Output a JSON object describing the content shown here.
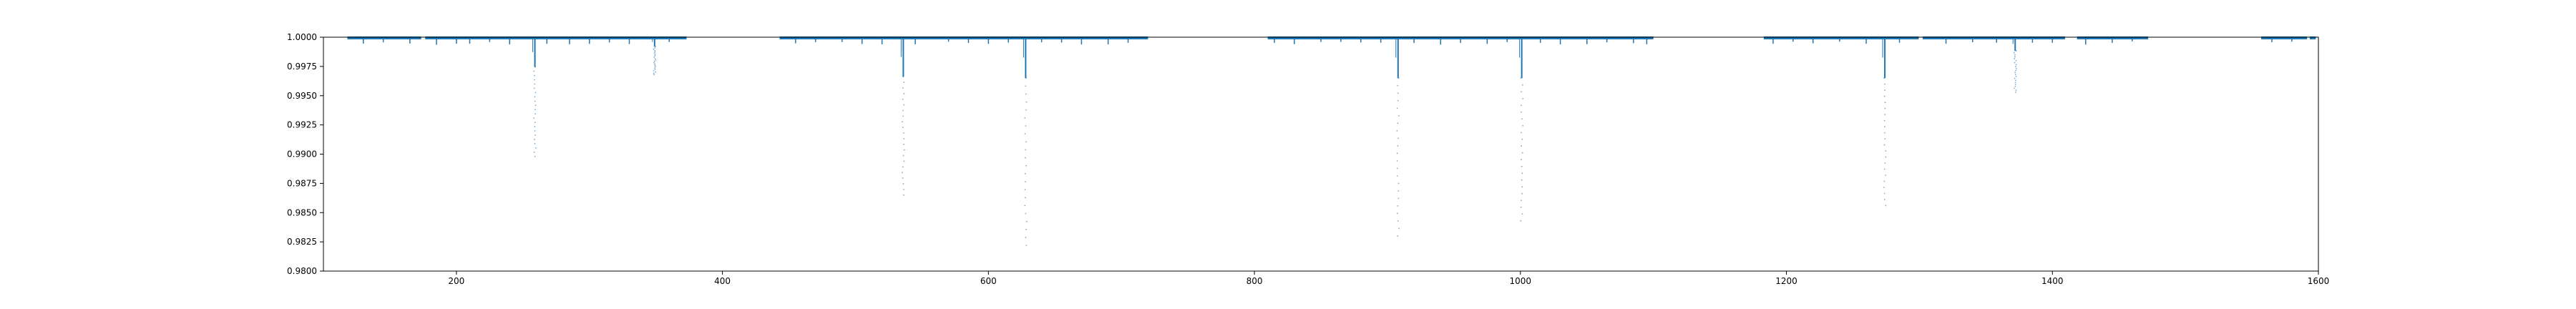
{
  "chart_data": {
    "type": "scatter",
    "title": "",
    "xlabel": "",
    "ylabel": "",
    "xlim": [
      100,
      1600
    ],
    "ylim": [
      0.98,
      1.0
    ],
    "grid": false,
    "x_ticks": [
      200,
      400,
      600,
      800,
      1000,
      1200,
      1400,
      1600
    ],
    "x_tick_labels": [
      "200",
      "400",
      "600",
      "800",
      "1000",
      "1200",
      "1400",
      "1600"
    ],
    "y_ticks": [
      0.98,
      0.9825,
      0.985,
      0.9875,
      0.99,
      0.9925,
      0.995,
      0.9975,
      1.0
    ],
    "y_tick_labels": [
      "0.9800",
      "0.9825",
      "0.9850",
      "0.9875",
      "0.9900",
      "0.9925",
      "0.9950",
      "0.9975",
      "1.0000"
    ],
    "colors": {
      "series": "#1f77b4"
    },
    "segments": [
      [
        118,
        373
      ],
      [
        443,
        720
      ],
      [
        810,
        1100
      ],
      [
        1183,
        1472
      ],
      [
        1557,
        1598
      ]
    ],
    "gaps": [
      [
        174,
        176
      ],
      [
        392,
        394
      ],
      [
        1300,
        1302
      ],
      [
        1410,
        1418
      ],
      [
        1592,
        1593
      ]
    ],
    "baseline": 0.99995,
    "scatter": 0.0001,
    "dips": [
      {
        "t": 259,
        "min": 0.9898
      },
      {
        "t": 349,
        "min": 0.9968
      },
      {
        "t": 536,
        "min": 0.9865
      },
      {
        "t": 628,
        "min": 0.9822
      },
      {
        "t": 908,
        "min": 0.983
      },
      {
        "t": 1001,
        "min": 0.9843
      },
      {
        "t": 1274,
        "min": 0.9856
      },
      {
        "t": 1372,
        "min": 0.9953
      }
    ],
    "small_dips": [
      130,
      145,
      165,
      185,
      200,
      210,
      225,
      240,
      268,
      285,
      300,
      315,
      330,
      360,
      455,
      470,
      490,
      505,
      520,
      545,
      570,
      585,
      600,
      615,
      640,
      655,
      670,
      690,
      705,
      815,
      830,
      850,
      865,
      880,
      895,
      920,
      940,
      955,
      975,
      990,
      1015,
      1030,
      1050,
      1065,
      1085,
      1095,
      1190,
      1205,
      1220,
      1240,
      1260,
      1285,
      1320,
      1340,
      1358,
      1385,
      1400,
      1425,
      1445,
      1460,
      1565,
      1580
    ]
  }
}
